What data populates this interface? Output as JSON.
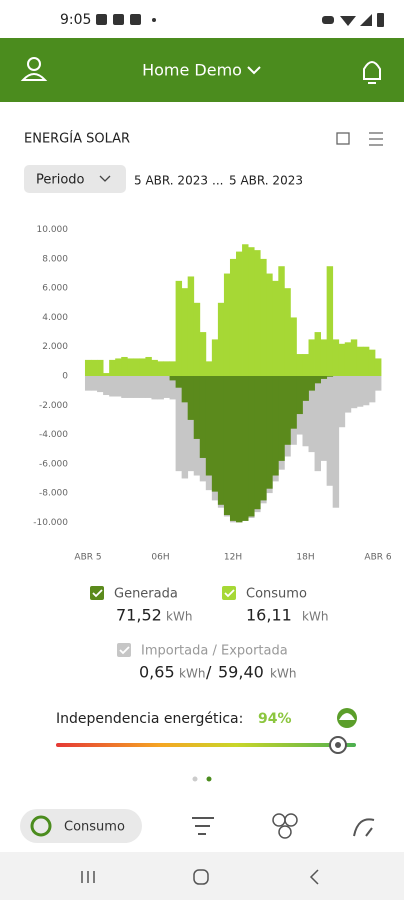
{
  "status_bar": {
    "time": "9:05"
  },
  "header": {
    "title": "Home Demo"
  },
  "card": {
    "title": "ENERGÍA SOLAR",
    "period_button": "Periodo",
    "date_from": "5 ABR. 2023",
    "date_separator": "...",
    "date_to": "5 ABR. 2023"
  },
  "chart_data": {
    "type": "bar",
    "x": [
      0,
      0.5,
      1,
      1.5,
      2,
      2.5,
      3,
      3.5,
      4,
      4.5,
      5,
      5.5,
      6,
      6.5,
      7,
      7.5,
      8,
      8.5,
      9,
      9.5,
      10,
      10.5,
      11,
      11.5,
      12,
      12.5,
      13,
      13.5,
      14,
      14.5,
      15,
      15.5,
      16,
      16.5,
      17,
      17.5,
      18,
      18.5,
      19,
      19.5,
      20,
      20.5,
      21,
      21.5,
      22,
      22.5,
      23,
      23.5,
      24
    ],
    "xlim": [
      0,
      24
    ],
    "xticks": [
      {
        "value": 0,
        "label": "ABR 5"
      },
      {
        "value": 6,
        "label": "06H"
      },
      {
        "value": 12,
        "label": "12H"
      },
      {
        "value": 18,
        "label": "18H"
      },
      {
        "value": 24,
        "label": "ABR 6"
      }
    ],
    "ylim": [
      -11000,
      11000
    ],
    "yticks": [
      {
        "value": 10000,
        "label": "10.000"
      },
      {
        "value": 8000,
        "label": "8.000"
      },
      {
        "value": 6000,
        "label": "6.000"
      },
      {
        "value": 4000,
        "label": "4.000"
      },
      {
        "value": 2000,
        "label": "2.000"
      },
      0,
      {
        "value": -2000,
        "label": "-2.000"
      },
      {
        "value": -4000,
        "label": "-4.000"
      },
      {
        "value": -6000,
        "label": "-6.000"
      },
      {
        "value": -8000,
        "label": "-8.000"
      },
      {
        "value": -10000,
        "label": "-10.000"
      }
    ],
    "grid": false,
    "series": [
      {
        "name": "Generada",
        "color": "#5b8a1c",
        "values": [
          0,
          0,
          0,
          0,
          0,
          0,
          0,
          0,
          0,
          0,
          0,
          0,
          0,
          0,
          -300,
          -800,
          -1800,
          -3000,
          -4300,
          -5600,
          -6800,
          -7900,
          -8800,
          -9500,
          -9900,
          -10000,
          -9900,
          -9600,
          -9100,
          -8500,
          -7700,
          -6800,
          -5800,
          -4700,
          -3600,
          -2600,
          -1700,
          -1000,
          -500,
          -200,
          -50,
          0,
          0,
          0,
          0,
          0,
          0,
          0,
          0
        ]
      },
      {
        "name": "Consumo",
        "color": "#a6d835",
        "values": [
          1100,
          1100,
          1100,
          200,
          1100,
          1200,
          1300,
          1200,
          1200,
          1200,
          1300,
          1100,
          1000,
          1000,
          1000,
          6500,
          6000,
          6800,
          5000,
          3000,
          1000,
          2500,
          5000,
          7000,
          8000,
          8500,
          9000,
          8800,
          8600,
          8000,
          7000,
          6500,
          7500,
          6000,
          4000,
          1500,
          1500,
          2500,
          3000,
          2500,
          7500,
          2500,
          2200,
          2300,
          2500,
          2000,
          2000,
          1800,
          1200
        ]
      },
      {
        "name": "Importada / Exportada",
        "color": "#c6c6c6",
        "values": [
          -1000,
          -1000,
          -1100,
          -1300,
          -1400,
          -1400,
          -1500,
          -1500,
          -1500,
          -1500,
          -1500,
          -1600,
          -1600,
          -1500,
          -1600,
          -6500,
          -7000,
          -6500,
          -6800,
          -7200,
          -7800,
          -8500,
          -9000,
          -9600,
          -10000,
          -10000,
          -9900,
          -9700,
          -9300,
          -8700,
          -8000,
          -7200,
          -6400,
          -5500,
          -4700,
          -4000,
          -4800,
          -5200,
          -6500,
          -5800,
          -7500,
          -9000,
          -3500,
          -2500,
          -2200,
          -2100,
          -2000,
          -1800,
          -1000
        ]
      }
    ]
  },
  "totals": {
    "generated": {
      "value": "71,52",
      "unit": "kWh"
    },
    "consumption": {
      "value": "16,11",
      "unit": "kWh"
    },
    "imported": {
      "value": "0,65",
      "unit": "kWh"
    },
    "separator": "/",
    "exported": {
      "value": "59,40",
      "unit": "kWh"
    }
  },
  "independence": {
    "label": "Independencia energética:",
    "score": {
      "value": 94,
      "label": "94%"
    }
  },
  "nav": {
    "active": "Consumo"
  }
}
